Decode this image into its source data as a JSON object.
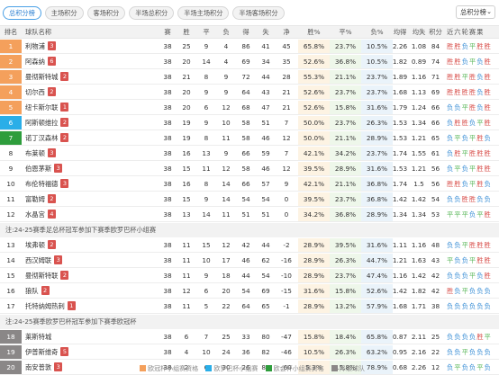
{
  "tabs": [
    {
      "label": "总积分榜",
      "active": true
    },
    {
      "label": "主场积分",
      "active": false
    },
    {
      "label": "客场积分",
      "active": false
    },
    {
      "label": "半场总积分",
      "active": false
    },
    {
      "label": "半场主场积分",
      "active": false
    },
    {
      "label": "半场客场积分",
      "active": false
    }
  ],
  "select": {
    "value": "总积分榜"
  },
  "colors": {
    "ucl": "#f4a05c",
    "uel": "#2aaee8",
    "uecl": "#2e9d3c",
    "relegation": "#8a8787",
    "win": "#d9534f",
    "draw": "#5cb85c",
    "loss": "#3b8fd6"
  },
  "header": {
    "rank": "排名",
    "team": "球队名称",
    "p": "赛",
    "w": "胜",
    "d": "平",
    "l": "负",
    "gf": "得",
    "ga": "失",
    "gd": "净",
    "wp": "胜%",
    "dp": "平%",
    "lp": "负%",
    "avg": "均得",
    "avl": "均失",
    "pts": "积分",
    "form": "近六轮赛果"
  },
  "notes": [
    "注:24-25赛季足总杯冠军参加下赛季欧罗巴杯小组赛",
    "注:24-25赛季欧罗巴杯冠军参加下赛季欧冠杯"
  ],
  "rows": [
    {
      "rank": "1",
      "zone": "ucl",
      "team": "利物浦",
      "badge": "3",
      "p": "38",
      "w": "25",
      "d": "9",
      "l": "4",
      "gf": "86",
      "ga": "41",
      "gd": "45",
      "wp": "65.8%",
      "dp": "23.7%",
      "lp": "10.5%",
      "avg": "2.26",
      "avl": "1.08",
      "pts": "84",
      "form": [
        "胜",
        "胜",
        "负",
        "平",
        "胜",
        "胜"
      ]
    },
    {
      "rank": "2",
      "zone": "ucl",
      "team": "阿森纳",
      "badge": "6",
      "p": "38",
      "w": "20",
      "d": "14",
      "l": "4",
      "gf": "69",
      "ga": "34",
      "gd": "35",
      "wp": "52.6%",
      "dp": "36.8%",
      "lp": "10.5%",
      "avg": "1.82",
      "avl": "0.89",
      "pts": "74",
      "form": [
        "胜",
        "胜",
        "负",
        "平",
        "负",
        "胜"
      ]
    },
    {
      "rank": "3",
      "zone": "ucl",
      "team": "曼彻斯特城",
      "badge": "2",
      "p": "38",
      "w": "21",
      "d": "8",
      "l": "9",
      "gf": "72",
      "ga": "44",
      "gd": "28",
      "wp": "55.3%",
      "dp": "21.1%",
      "lp": "23.7%",
      "avg": "1.89",
      "avl": "1.16",
      "pts": "71",
      "form": [
        "胜",
        "胜",
        "平",
        "胜",
        "负",
        "胜"
      ]
    },
    {
      "rank": "4",
      "zone": "ucl",
      "team": "切尔西",
      "badge": "2",
      "p": "38",
      "w": "20",
      "d": "9",
      "l": "9",
      "gf": "64",
      "ga": "43",
      "gd": "21",
      "wp": "52.6%",
      "dp": "23.7%",
      "lp": "23.7%",
      "avg": "1.68",
      "avl": "1.13",
      "pts": "69",
      "form": [
        "胜",
        "胜",
        "胜",
        "胜",
        "负",
        "胜"
      ]
    },
    {
      "rank": "5",
      "zone": "ucl",
      "team": "纽卡斯尔联",
      "badge": "1",
      "p": "38",
      "w": "20",
      "d": "6",
      "l": "12",
      "gf": "68",
      "ga": "47",
      "gd": "21",
      "wp": "52.6%",
      "dp": "15.8%",
      "lp": "31.6%",
      "avg": "1.79",
      "avl": "1.24",
      "pts": "66",
      "form": [
        "负",
        "负",
        "平",
        "胜",
        "负",
        "胜"
      ]
    },
    {
      "rank": "6",
      "zone": "uel",
      "team": "阿斯顿维拉",
      "badge": "2",
      "p": "38",
      "w": "19",
      "d": "9",
      "l": "10",
      "gf": "58",
      "ga": "51",
      "gd": "7",
      "wp": "50.0%",
      "dp": "23.7%",
      "lp": "26.3%",
      "avg": "1.53",
      "avl": "1.34",
      "pts": "66",
      "form": [
        "负",
        "胜",
        "胜",
        "负",
        "平",
        "胜"
      ]
    },
    {
      "rank": "7",
      "zone": "uecl",
      "team": "诺丁汉森林",
      "badge": "2",
      "p": "38",
      "w": "19",
      "d": "8",
      "l": "11",
      "gf": "58",
      "ga": "46",
      "gd": "12",
      "wp": "50.0%",
      "dp": "21.1%",
      "lp": "28.9%",
      "avg": "1.53",
      "avl": "1.21",
      "pts": "65",
      "form": [
        "负",
        "平",
        "负",
        "平",
        "胜",
        "负"
      ]
    },
    {
      "rank": "8",
      "zone": "",
      "team": "布莱顿",
      "badge": "3",
      "p": "38",
      "w": "16",
      "d": "13",
      "l": "9",
      "gf": "66",
      "ga": "59",
      "gd": "7",
      "wp": "42.1%",
      "dp": "34.2%",
      "lp": "23.7%",
      "avg": "1.74",
      "avl": "1.55",
      "pts": "61",
      "form": [
        "负",
        "胜",
        "平",
        "胜",
        "胜",
        "胜"
      ]
    },
    {
      "rank": "9",
      "zone": "",
      "team": "伯恩茅斯",
      "badge": "3",
      "p": "38",
      "w": "15",
      "d": "11",
      "l": "12",
      "gf": "58",
      "ga": "46",
      "gd": "12",
      "wp": "39.5%",
      "dp": "28.9%",
      "lp": "31.6%",
      "avg": "1.53",
      "avl": "1.21",
      "pts": "56",
      "form": [
        "负",
        "平",
        "负",
        "平",
        "胜",
        "胜"
      ]
    },
    {
      "rank": "10",
      "zone": "",
      "team": "布伦特福德",
      "badge": "3",
      "p": "38",
      "w": "16",
      "d": "8",
      "l": "14",
      "gf": "66",
      "ga": "57",
      "gd": "9",
      "wp": "42.1%",
      "dp": "21.1%",
      "lp": "36.8%",
      "avg": "1.74",
      "avl": "1.5",
      "pts": "56",
      "form": [
        "胜",
        "胜",
        "负",
        "平",
        "胜",
        "负"
      ]
    },
    {
      "rank": "11",
      "zone": "",
      "team": "富勒姆",
      "badge": "2",
      "p": "38",
      "w": "15",
      "d": "9",
      "l": "14",
      "gf": "54",
      "ga": "54",
      "gd": "0",
      "wp": "39.5%",
      "dp": "23.7%",
      "lp": "36.8%",
      "avg": "1.42",
      "avl": "1.42",
      "pts": "54",
      "form": [
        "负",
        "负",
        "胜",
        "胜",
        "负",
        "负"
      ]
    },
    {
      "rank": "12",
      "zone": "",
      "team": "水晶宫",
      "badge": "4",
      "p": "38",
      "w": "13",
      "d": "14",
      "l": "11",
      "gf": "51",
      "ga": "51",
      "gd": "0",
      "wp": "34.2%",
      "dp": "36.8%",
      "lp": "28.9%",
      "avg": "1.34",
      "avl": "1.34",
      "pts": "53",
      "form": [
        "平",
        "平",
        "平",
        "负",
        "平",
        "胜"
      ]
    },
    {
      "rank": "13",
      "zone": "",
      "team": "埃弗顿",
      "badge": "2",
      "p": "38",
      "w": "11",
      "d": "15",
      "l": "12",
      "gf": "42",
      "ga": "44",
      "gd": "-2",
      "wp": "28.9%",
      "dp": "39.5%",
      "lp": "31.6%",
      "avg": "1.11",
      "avl": "1.16",
      "pts": "48",
      "form": [
        "负",
        "负",
        "平",
        "胜",
        "胜",
        "胜"
      ]
    },
    {
      "rank": "14",
      "zone": "",
      "team": "西汉姆联",
      "badge": "3",
      "p": "38",
      "w": "11",
      "d": "10",
      "l": "17",
      "gf": "46",
      "ga": "62",
      "gd": "-16",
      "wp": "28.9%",
      "dp": "26.3%",
      "lp": "44.7%",
      "avg": "1.21",
      "avl": "1.63",
      "pts": "43",
      "form": [
        "平",
        "负",
        "负",
        "平",
        "胜",
        "胜"
      ]
    },
    {
      "rank": "15",
      "zone": "",
      "team": "曼彻斯特联",
      "badge": "2",
      "p": "38",
      "w": "11",
      "d": "9",
      "l": "18",
      "gf": "44",
      "ga": "54",
      "gd": "-10",
      "wp": "28.9%",
      "dp": "23.7%",
      "lp": "47.4%",
      "avg": "1.16",
      "avl": "1.42",
      "pts": "42",
      "form": [
        "负",
        "负",
        "负",
        "平",
        "负",
        "胜"
      ]
    },
    {
      "rank": "16",
      "zone": "",
      "team": "狼队",
      "badge": "2",
      "p": "38",
      "w": "12",
      "d": "6",
      "l": "20",
      "gf": "54",
      "ga": "69",
      "gd": "-15",
      "wp": "31.6%",
      "dp": "15.8%",
      "lp": "52.6%",
      "avg": "1.42",
      "avl": "1.82",
      "pts": "42",
      "form": [
        "胜",
        "负",
        "平",
        "负",
        "负",
        "负"
      ]
    },
    {
      "rank": "17",
      "zone": "",
      "team": "托特纳姆热刺",
      "badge": "1",
      "p": "38",
      "w": "11",
      "d": "5",
      "l": "22",
      "gf": "64",
      "ga": "65",
      "gd": "-1",
      "wp": "28.9%",
      "dp": "13.2%",
      "lp": "57.9%",
      "avg": "1.68",
      "avl": "1.71",
      "pts": "38",
      "form": [
        "负",
        "负",
        "负",
        "负",
        "负",
        "负"
      ]
    },
    {
      "rank": "18",
      "zone": "rel",
      "team": "莱斯特城",
      "badge": "",
      "p": "38",
      "w": "6",
      "d": "7",
      "l": "25",
      "gf": "33",
      "ga": "80",
      "gd": "-47",
      "wp": "15.8%",
      "dp": "18.4%",
      "lp": "65.8%",
      "avg": "0.87",
      "avl": "2.11",
      "pts": "25",
      "form": [
        "负",
        "负",
        "负",
        "负",
        "胜",
        "平"
      ]
    },
    {
      "rank": "19",
      "zone": "rel",
      "team": "伊普斯维奇",
      "badge": "5",
      "p": "38",
      "w": "4",
      "d": "10",
      "l": "24",
      "gf": "36",
      "ga": "82",
      "gd": "-46",
      "wp": "10.5%",
      "dp": "26.3%",
      "lp": "63.2%",
      "avg": "0.95",
      "avl": "2.16",
      "pts": "22",
      "form": [
        "负",
        "负",
        "平",
        "负",
        "负",
        "负"
      ]
    },
    {
      "rank": "20",
      "zone": "rel",
      "team": "南安普敦",
      "badge": "3",
      "p": "38",
      "w": "2",
      "d": "6",
      "l": "30",
      "gf": "26",
      "ga": "86",
      "gd": "-60",
      "wp": "5.3%",
      "dp": "15.8%",
      "lp": "78.9%",
      "avg": "0.68",
      "avl": "2.26",
      "pts": "12",
      "form": [
        "负",
        "平",
        "负",
        "负",
        "平",
        "负"
      ]
    }
  ],
  "legend": [
    "欧冠杯小组赛资格",
    "欧罗巴杯小组赛",
    "欧会杯小组赛资格",
    "降级球队"
  ]
}
